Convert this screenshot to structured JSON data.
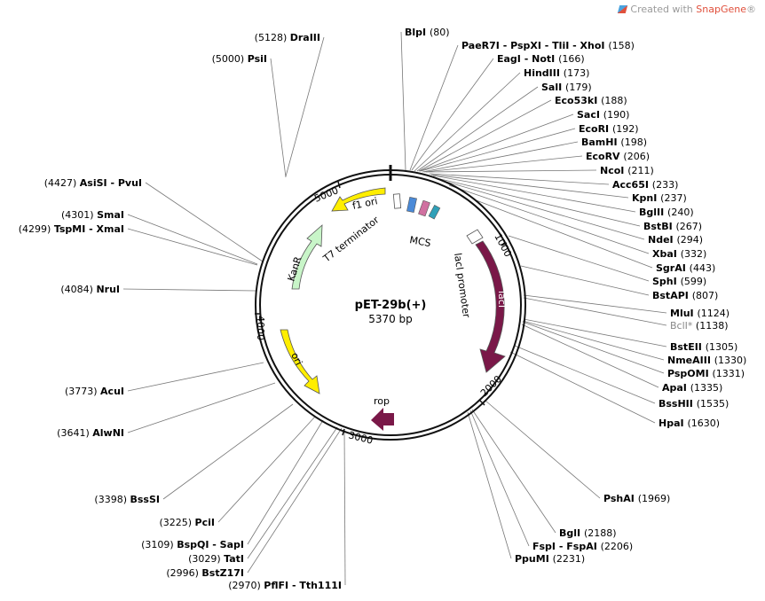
{
  "watermark": {
    "prefix": "Created with ",
    "brand": "SnapGene",
    "suffix": "®"
  },
  "plasmid": {
    "name": "pET-29b(+)",
    "size": "5370 bp"
  },
  "ticks": [
    "5000",
    "1000",
    "2000",
    "3000",
    "4000"
  ],
  "features": {
    "f1_ori": "f1 ori",
    "kanr": "KanR",
    "ori": "ori",
    "laci": "lacI",
    "rop": "rop",
    "t7_terminator": "T7 terminator",
    "mcs": "MCS",
    "laci_promoter": "lacI promoter"
  },
  "sites_left": [
    {
      "pos": "(5128)",
      "name": "DraIII"
    },
    {
      "pos": "(5000)",
      "name": "PsiI"
    },
    {
      "pos": "(4427)",
      "name": "AsiSI - PvuI"
    },
    {
      "pos": "(4301)",
      "name": "SmaI"
    },
    {
      "pos": "(4299)",
      "name": "TspMI - XmaI"
    },
    {
      "pos": "(4084)",
      "name": "NruI"
    },
    {
      "pos": "(3773)",
      "name": "AcuI"
    },
    {
      "pos": "(3641)",
      "name": "AlwNI"
    },
    {
      "pos": "(3398)",
      "name": "BssSI"
    },
    {
      "pos": "(3225)",
      "name": "PciI"
    },
    {
      "pos": "(3109)",
      "name": "BspQI - SapI"
    },
    {
      "pos": "(3029)",
      "name": "TatI"
    },
    {
      "pos": "(2996)",
      "name": "BstZ17I"
    },
    {
      "pos": "(2970)",
      "name": "PflFI - Tth111I"
    }
  ],
  "sites_right": [
    {
      "name": "BlpI",
      "pos": "(80)"
    },
    {
      "name": "PaeR7I - PspXI - TliI - XhoI",
      "pos": "(158)"
    },
    {
      "name": "EagI - NotI",
      "pos": "(166)"
    },
    {
      "name": "HindIII",
      "pos": "(173)"
    },
    {
      "name": "SalI",
      "pos": "(179)"
    },
    {
      "name": "Eco53kI",
      "pos": "(188)"
    },
    {
      "name": "SacI",
      "pos": "(190)"
    },
    {
      "name": "EcoRI",
      "pos": "(192)"
    },
    {
      "name": "BamHI",
      "pos": "(198)"
    },
    {
      "name": "EcoRV",
      "pos": "(206)"
    },
    {
      "name": "NcoI",
      "pos": "(211)"
    },
    {
      "name": "Acc65I",
      "pos": "(233)"
    },
    {
      "name": "KpnI",
      "pos": "(237)"
    },
    {
      "name": "BglII",
      "pos": "(240)"
    },
    {
      "name": "BstBI",
      "pos": "(267)"
    },
    {
      "name": "NdeI",
      "pos": "(294)"
    },
    {
      "name": "XbaI",
      "pos": "(332)"
    },
    {
      "name": "SgrAI",
      "pos": "(443)"
    },
    {
      "name": "SphI",
      "pos": "(599)"
    },
    {
      "name": "BstAPI",
      "pos": "(807)"
    },
    {
      "name": "MluI",
      "pos": "(1124)"
    },
    {
      "name": "BclI*",
      "pos": "(1138)"
    },
    {
      "name": "BstEII",
      "pos": "(1305)"
    },
    {
      "name": "NmeAIII",
      "pos": "(1330)"
    },
    {
      "name": "PspOMI",
      "pos": "(1331)"
    },
    {
      "name": "ApaI",
      "pos": "(1335)"
    },
    {
      "name": "BssHII",
      "pos": "(1535)"
    },
    {
      "name": "HpaI",
      "pos": "(1630)"
    },
    {
      "name": "PshAI",
      "pos": "(1969)"
    },
    {
      "name": "BglI",
      "pos": "(2188)"
    },
    {
      "name": "FspI - FspAI",
      "pos": "(2206)"
    },
    {
      "name": "PpuMI",
      "pos": "(2231)"
    }
  ],
  "colors": {
    "yellow": "#ffee00",
    "green": "#c8f5c8",
    "maroon": "#7a1848",
    "mcs_blue": "#4a8ad8",
    "mcs_pink": "#d070a0",
    "mcs_teal": "#30a0b8"
  }
}
